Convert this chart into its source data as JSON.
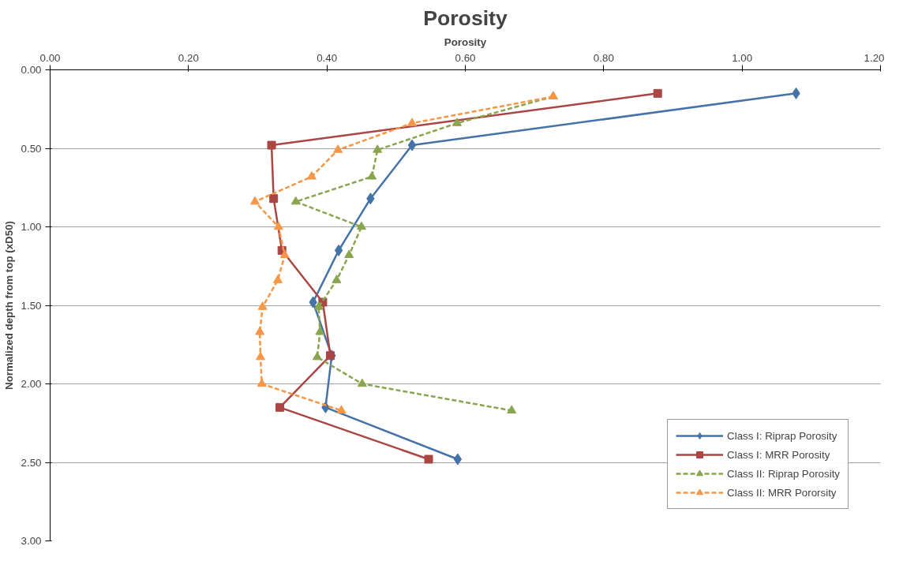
{
  "chart_data": {
    "type": "line",
    "title": "Porosity",
    "xlabel": "Porosity",
    "ylabel": "Normalized depth from top (xD50)",
    "xlim": [
      0,
      1.2
    ],
    "xticks": [
      {
        "value": 0,
        "label": "0.00"
      },
      {
        "value": 0.2,
        "label": "0.20"
      },
      {
        "value": 0.4,
        "label": "0.40"
      },
      {
        "value": 0.6,
        "label": "0.60"
      },
      {
        "value": 0.8,
        "label": "0.80"
      },
      {
        "value": 1.0,
        "label": "1.00"
      },
      {
        "value": 1.2,
        "label": "1.20"
      }
    ],
    "ylim": [
      3,
      0
    ],
    "yticks": [
      {
        "value": 0,
        "label": "0.00"
      },
      {
        "value": 0.5,
        "label": "0.50"
      },
      {
        "value": 1.0,
        "label": "1.00"
      },
      {
        "value": 1.5,
        "label": "1.50"
      },
      {
        "value": 2.0,
        "label": "2.00"
      },
      {
        "value": 2.5,
        "label": "2.50"
      },
      {
        "value": 3.0,
        "label": "3.00"
      }
    ],
    "grid": "y",
    "legend": "bottom right",
    "series": [
      {
        "name": "Class I: Riprap Porosity",
        "color": "#4572a7",
        "marker": "diamond",
        "line_style": "solid",
        "x": [
          1.078,
          0.523,
          0.463,
          0.417,
          0.38,
          0.407,
          0.398,
          0.589
        ],
        "values": [
          0.15,
          0.48,
          0.82,
          1.15,
          1.48,
          1.82,
          2.15,
          2.48
        ]
      },
      {
        "name": "Class I: MRR Porosity",
        "color": "#aa4643",
        "marker": "square",
        "line_style": "solid",
        "x": [
          0.878,
          0.32,
          0.323,
          0.335,
          0.394,
          0.405,
          0.332,
          0.547
        ],
        "values": [
          0.15,
          0.48,
          0.82,
          1.15,
          1.48,
          1.82,
          2.15,
          2.48
        ]
      },
      {
        "name": "Class II: Riprap Porosity",
        "color": "#89a54e",
        "marker": "triangle",
        "line_style": "dashed",
        "x": [
          0.727,
          0.588,
          0.473,
          0.465,
          0.355,
          0.45,
          0.432,
          0.414,
          0.388,
          0.39,
          0.386,
          0.451,
          0.667
        ],
        "values": [
          0.17,
          0.34,
          0.51,
          0.68,
          0.84,
          1.0,
          1.18,
          1.34,
          1.51,
          1.67,
          1.83,
          2.0,
          2.17
        ]
      },
      {
        "name": "Class II: MRR Pororsity",
        "color": "#f79646",
        "marker": "triangle",
        "line_style": "dashed",
        "x": [
          0.727,
          0.523,
          0.416,
          0.378,
          0.296,
          0.33,
          0.339,
          0.329,
          0.307,
          0.303,
          0.304,
          0.306,
          0.421
        ],
        "values": [
          0.17,
          0.34,
          0.51,
          0.68,
          0.84,
          1.0,
          1.18,
          1.34,
          1.51,
          1.67,
          1.83,
          2.0,
          2.17
        ]
      }
    ]
  }
}
